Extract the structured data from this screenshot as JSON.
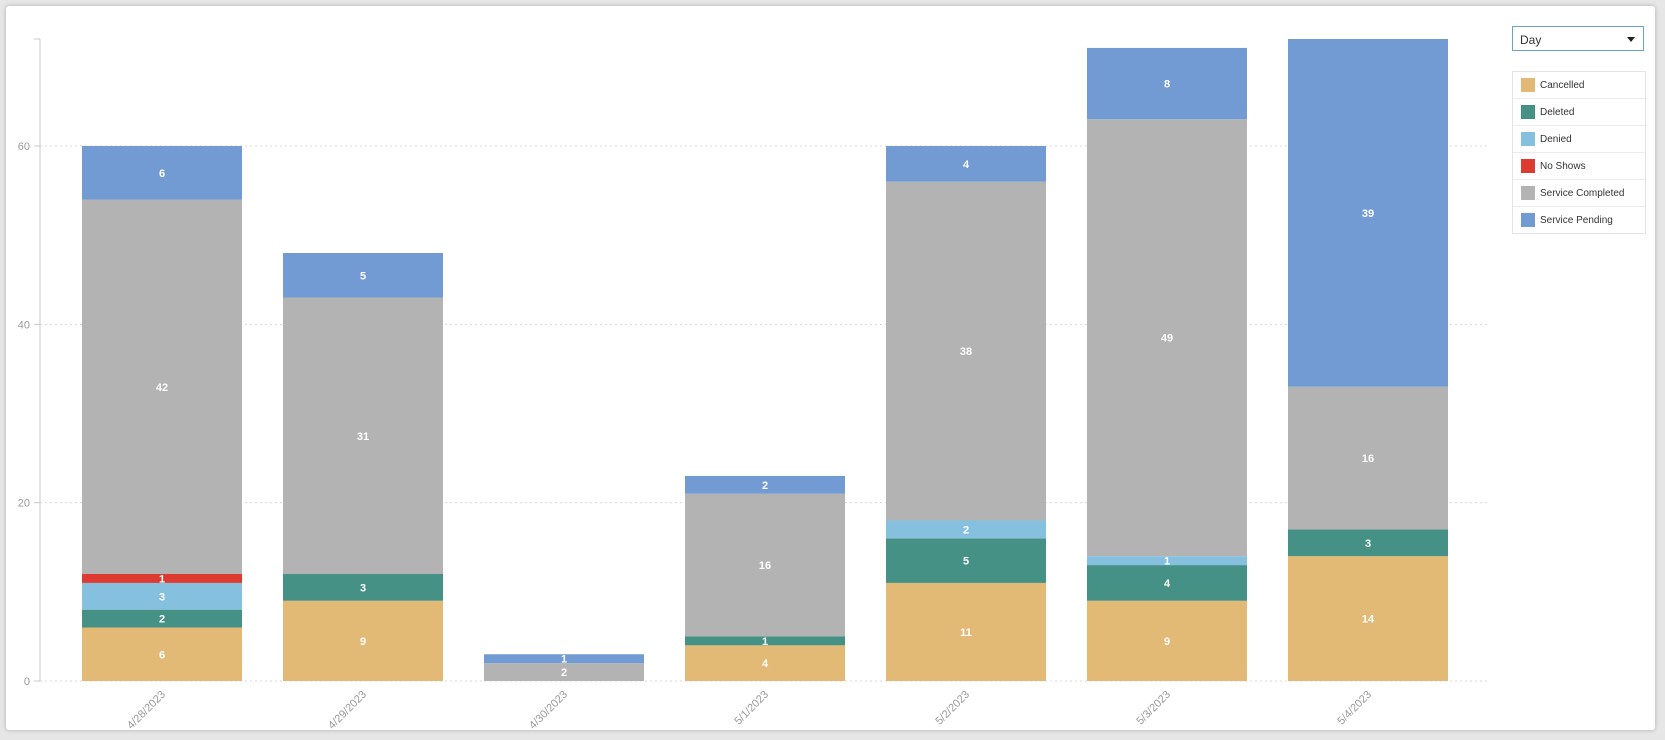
{
  "controls": {
    "period_selected": "Day"
  },
  "legend": [
    {
      "label": "Cancelled",
      "color": "#e3b976"
    },
    {
      "label": "Deleted",
      "color": "#469186"
    },
    {
      "label": "Denied",
      "color": "#85c0de"
    },
    {
      "label": "No Shows",
      "color": "#dd3a32"
    },
    {
      "label": "Service Completed",
      "color": "#b3b3b3"
    },
    {
      "label": "Service Pending",
      "color": "#739bd3"
    }
  ],
  "chart_data": {
    "type": "bar",
    "stacked": true,
    "categories": [
      "4/28/2023",
      "4/29/2023",
      "4/30/2023",
      "5/1/2023",
      "5/2/2023",
      "5/3/2023",
      "5/4/2023"
    ],
    "series": [
      {
        "name": "Cancelled",
        "color": "#e3b976",
        "values": [
          6,
          9,
          0,
          4,
          11,
          9,
          14
        ]
      },
      {
        "name": "Deleted",
        "color": "#469186",
        "values": [
          2,
          3,
          0,
          1,
          5,
          4,
          3
        ]
      },
      {
        "name": "Denied",
        "color": "#85c0de",
        "values": [
          3,
          0,
          0,
          0,
          2,
          1,
          0
        ]
      },
      {
        "name": "No Shows",
        "color": "#dd3a32",
        "values": [
          1,
          0,
          0,
          0,
          0,
          0,
          0
        ]
      },
      {
        "name": "Service Completed",
        "color": "#b3b3b3",
        "values": [
          42,
          31,
          2,
          16,
          38,
          49,
          16
        ]
      },
      {
        "name": "Service Pending",
        "color": "#739bd3",
        "values": [
          6,
          5,
          1,
          2,
          4,
          8,
          39
        ]
      }
    ],
    "yticks": [
      0,
      20,
      40,
      60
    ],
    "ylim": [
      0,
      72
    ],
    "grid": true,
    "legend_position": "right"
  }
}
